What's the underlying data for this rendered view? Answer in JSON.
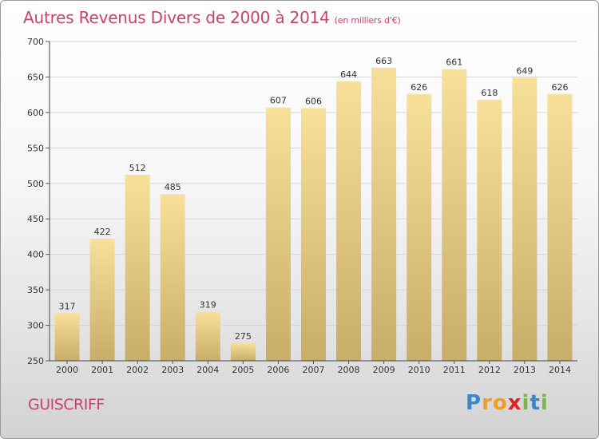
{
  "header": {
    "title": "Autres Revenus Divers de 2000 à 2014",
    "unit_note": "(en milliers d'€)"
  },
  "footer": {
    "town": "GUISCRIFF"
  },
  "brand": {
    "letters": [
      "P",
      "r",
      "o",
      "x",
      "i",
      "t",
      "i"
    ],
    "colors": [
      "#3a86c8",
      "#f39c1f",
      "#f39c1f",
      "#e02020",
      "#7ab648",
      "#3a86c8",
      "#7ab648"
    ]
  },
  "colors": {
    "title": "#c8426b",
    "bar_light": "#f7e09a",
    "bar_dark": "#c8ad68",
    "grid": "#d6d6d6"
  },
  "chart_data": {
    "type": "bar",
    "title": "Autres Revenus Divers de 2000 à 2014",
    "xlabel": "",
    "ylabel": "",
    "categories": [
      "2000",
      "2001",
      "2002",
      "2003",
      "2004",
      "2005",
      "2006",
      "2007",
      "2008",
      "2009",
      "2010",
      "2011",
      "2012",
      "2013",
      "2014"
    ],
    "values": [
      317,
      422,
      512,
      485,
      319,
      275,
      607,
      606,
      644,
      663,
      626,
      661,
      618,
      649,
      626
    ],
    "ylim": [
      250,
      700
    ],
    "yticks": [
      250,
      300,
      350,
      400,
      450,
      500,
      550,
      600,
      650,
      700
    ],
    "grid": true,
    "data_labels": true
  }
}
